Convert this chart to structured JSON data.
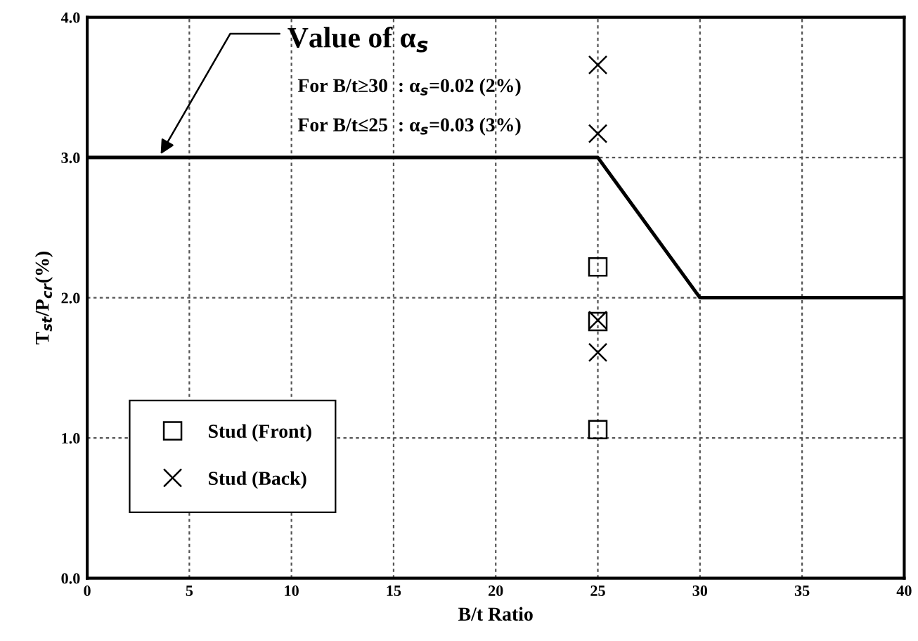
{
  "chart_data": {
    "type": "scatter",
    "xlabel": "B/t Ratio",
    "ylabel": "T$_{st}$/P$_{cr}$(%)",
    "xlim": [
      0,
      40
    ],
    "ylim": [
      0,
      4
    ],
    "xticks": [
      0,
      5,
      10,
      15,
      20,
      25,
      30,
      35,
      40
    ],
    "yticks": [
      {
        "value": 0,
        "label": "0.0"
      },
      {
        "value": 1,
        "label": "1.0"
      },
      {
        "value": 2,
        "label": "2.0"
      },
      {
        "value": 3,
        "label": "3.0"
      },
      {
        "value": 4,
        "label": "4.0"
      }
    ],
    "grid": true,
    "legend": "bottom left",
    "series": [
      {
        "type": "line",
        "x": [
          0,
          25,
          30,
          40
        ],
        "values": [
          3,
          3,
          2,
          2
        ],
        "color": "#000000",
        "marker": "none",
        "line_style": "solid"
      },
      {
        "name": "Stud (Front)",
        "x": [
          25,
          25,
          25
        ],
        "values": [
          2.22,
          1.83,
          1.06
        ],
        "color": "#000000",
        "marker": "square"
      },
      {
        "name": "Stud (Back)",
        "x": [
          25,
          25,
          25,
          25
        ],
        "values": [
          3.66,
          3.17,
          1.84,
          1.61
        ],
        "color": "#000000",
        "marker": "cross"
      }
    ],
    "annotations": [
      {
        "text": "Value of α$_{s}$",
        "x": 3.5,
        "y": 3.0
      },
      "For B/t≥30  : α$_{s}$=0.02 (2%)",
      "For B/t≤25  : α$_{s}$=0.03 (3%)"
    ]
  }
}
